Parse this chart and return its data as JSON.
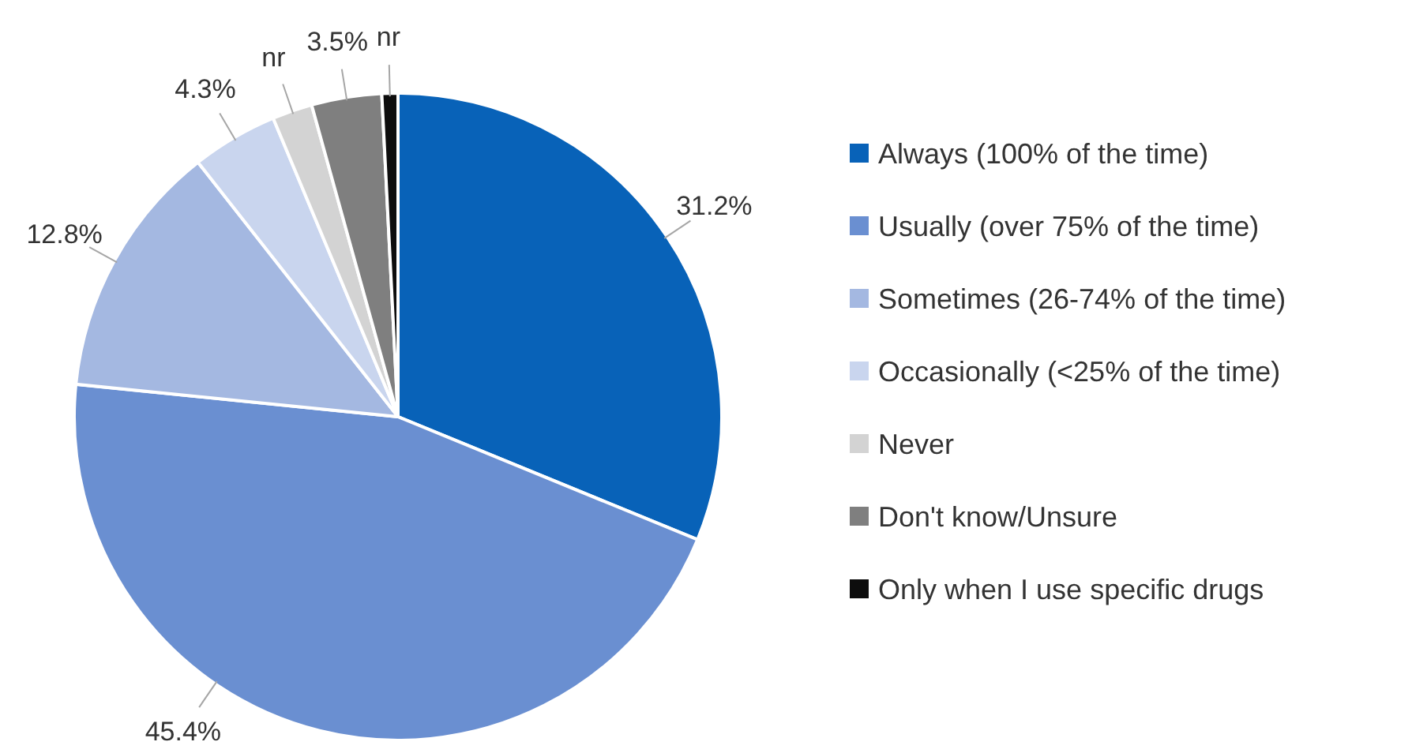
{
  "chart_data": {
    "type": "pie",
    "categories": [
      "Always (100% of the time)",
      "Usually (over 75% of the time)",
      "Sometimes (26-74% of the time)",
      "Occasionally (<25% of the time)",
      "Never",
      "Don't know/Unsure",
      "Only when I use specific drugs"
    ],
    "values": [
      31.2,
      45.4,
      12.8,
      4.3,
      2.0,
      3.5,
      0.8
    ],
    "value_labels": [
      "31.2%",
      "45.4%",
      "12.8%",
      "4.3%",
      "nr",
      "3.5%",
      "nr"
    ],
    "colors": [
      "#0862b8",
      "#6a8fd1",
      "#a4b8e1",
      "#c9d5ee",
      "#d3d3d3",
      "#7f7f7f",
      "#0d0d0d"
    ],
    "legend": "right"
  }
}
